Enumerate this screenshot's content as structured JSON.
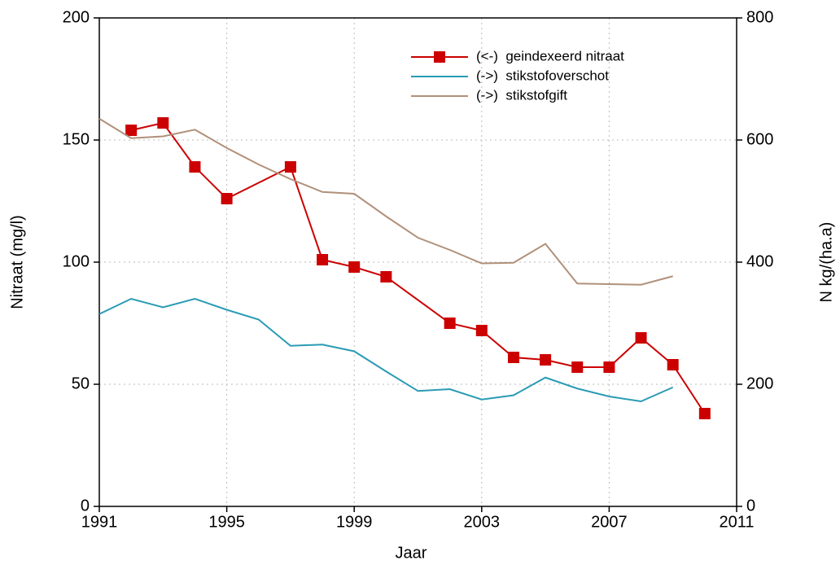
{
  "chart_data": {
    "type": "line",
    "xlabel": "Jaar",
    "ylabel": "Nitraat (mg/l)",
    "y2label": "N kg/(ha.a)",
    "xlim": [
      1991,
      2011
    ],
    "xticks": [
      1991,
      1995,
      1999,
      2003,
      2007,
      2011
    ],
    "ylim": [
      0,
      200
    ],
    "yticks": [
      0,
      50,
      100,
      150,
      200
    ],
    "y2lim": [
      0,
      800
    ],
    "y2ticks": [
      0,
      200,
      400,
      600,
      800
    ],
    "grid": true,
    "legend": "upper right",
    "series": [
      {
        "name": "(<-)  geindexeerd nitraat",
        "color": "#cc0000",
        "marker": "square",
        "x": [
          1992,
          1993,
          1994,
          1995,
          1997,
          1998,
          1999,
          2000,
          2002,
          2003,
          2004,
          2005,
          2006,
          2007,
          2008,
          2009,
          2010
        ],
        "values": [
          154,
          157,
          139,
          126,
          139,
          101,
          98,
          94,
          75,
          72,
          61,
          60,
          57,
          57,
          69,
          58,
          38
        ]
      },
      {
        "name": "(->)  stikstofoverschot",
        "color": "#2a9bb5",
        "axis": "y2",
        "x": [
          1991,
          1992,
          1993,
          1994,
          1995,
          1996,
          1997,
          1998,
          1999,
          2000,
          2001,
          2002,
          2003,
          2004,
          2005,
          2006,
          2007,
          2008,
          2009
        ],
        "values": [
          315,
          340,
          326,
          340,
          322,
          306,
          263,
          265,
          254,
          221,
          189,
          192,
          175,
          182,
          211,
          193,
          180,
          172,
          195
        ]
      },
      {
        "name": "(->)  stikstofgift",
        "color": "#b0907a",
        "axis": "y2",
        "x": [
          1991,
          1992,
          1993,
          1994,
          1995,
          1996,
          1997,
          1998,
          1999,
          2000,
          2001,
          2002,
          2003,
          2004,
          2005,
          2006,
          2007,
          2008,
          2009
        ],
        "values": [
          635,
          603,
          606,
          617,
          587,
          560,
          536,
          515,
          512,
          475,
          440,
          420,
          398,
          399,
          430,
          365,
          364,
          363,
          377
        ]
      }
    ]
  }
}
